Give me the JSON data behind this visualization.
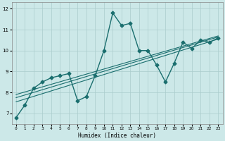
{
  "xlabel": "Humidex (Indice chaleur)",
  "xlim": [
    -0.5,
    23.5
  ],
  "ylim": [
    6.5,
    12.3
  ],
  "yticks": [
    7,
    8,
    9,
    10,
    11,
    12
  ],
  "xticks": [
    0,
    1,
    2,
    3,
    4,
    5,
    6,
    7,
    8,
    9,
    10,
    11,
    12,
    13,
    14,
    15,
    16,
    17,
    18,
    19,
    20,
    21,
    22,
    23
  ],
  "bg_color": "#cce8e8",
  "grid_color": "#aacccc",
  "line_color": "#1a6e6e",
  "main_series_x": [
    0,
    1,
    2,
    3,
    4,
    5,
    6,
    7,
    8,
    9,
    10,
    11,
    12,
    13,
    14,
    15,
    16,
    17,
    18,
    19,
    20,
    21,
    22,
    23
  ],
  "main_series_y": [
    6.8,
    7.4,
    8.2,
    8.5,
    8.7,
    8.8,
    8.9,
    7.6,
    7.8,
    8.8,
    10.0,
    11.8,
    11.2,
    11.3,
    10.0,
    10.0,
    9.3,
    8.5,
    9.4,
    10.4,
    10.1,
    10.5,
    10.4,
    10.6
  ],
  "trend_lines": [
    {
      "x0": 0,
      "y0": 7.55,
      "x1": 23,
      "y1": 10.55
    },
    {
      "x0": 0,
      "y0": 7.75,
      "x1": 23,
      "y1": 10.65
    },
    {
      "x0": 0,
      "y0": 7.9,
      "x1": 23,
      "y1": 10.7
    }
  ],
  "linewidth_main": 1.0,
  "linewidth_trend": 0.8,
  "markersize": 2.5
}
